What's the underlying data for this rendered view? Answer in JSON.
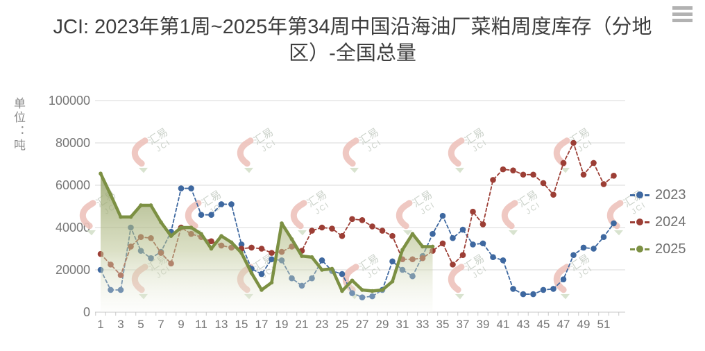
{
  "title": "JCI: 2023年第1周~2025年第34周中国沿海油厂菜粕周度库存（分地区）-全国总量",
  "menu_icon": "hamburger-icon",
  "y_axis": {
    "unit_label": "单位：吨",
    "tick_labels": [
      "0",
      "20000",
      "40000",
      "60000",
      "80000",
      "100000"
    ]
  },
  "x_axis": {
    "tick_labels": [
      "1",
      "3",
      "5",
      "7",
      "9",
      "11",
      "13",
      "15",
      "17",
      "19",
      "21",
      "23",
      "25",
      "27",
      "29",
      "31",
      "33",
      "35",
      "37",
      "39",
      "41",
      "43",
      "45",
      "47",
      "49",
      "51"
    ],
    "weeks_total": 52
  },
  "legend": [
    {
      "label": "2023",
      "color": "#3e68a0"
    },
    {
      "label": "2024",
      "color": "#9c3e35"
    },
    {
      "label": "2025",
      "color": "#7c9043"
    }
  ],
  "watermark": {
    "line1": "汇易",
    "line2": "JCI"
  },
  "colors": {
    "grid": "#d8d8d8",
    "axis": "#c8c8c8",
    "tick_text": "#767676",
    "area_top": "#8e9c5e",
    "area_mid": "#bcc594",
    "area_bottom": "#f7f8f2"
  },
  "chart_data": {
    "type": "line",
    "title": "JCI: 2023年第1周~2025年第34周中国沿海油厂菜粕周度库存（分地区）-全国总量",
    "ylabel": "单位：吨",
    "ylim": [
      0,
      100000
    ],
    "ytick_step": 20000,
    "x": [
      1,
      2,
      3,
      4,
      5,
      6,
      7,
      8,
      9,
      10,
      11,
      12,
      13,
      14,
      15,
      16,
      17,
      18,
      19,
      20,
      21,
      22,
      23,
      24,
      25,
      26,
      27,
      28,
      29,
      30,
      31,
      32,
      33,
      34,
      35,
      36,
      37,
      38,
      39,
      40,
      41,
      42,
      43,
      44,
      45,
      46,
      47,
      48,
      49,
      50,
      51,
      52
    ],
    "legend_position": "right",
    "grid": true,
    "series": [
      {
        "name": "2023",
        "color": "#3e68a0",
        "line_style": "dashed",
        "marker": "circle",
        "values": [
          20000,
          10500,
          10500,
          40000,
          29000,
          25500,
          28500,
          38000,
          58500,
          58500,
          46000,
          46000,
          51000,
          51000,
          32000,
          20500,
          18000,
          25000,
          24500,
          16000,
          12500,
          16000,
          24500,
          19500,
          18000,
          9000,
          7000,
          7500,
          10500,
          24000,
          20000,
          17000,
          26500,
          37000,
          45500,
          35000,
          39000,
          32000,
          32500,
          26000,
          24500,
          11000,
          8500,
          8500,
          10500,
          11000,
          15500,
          27000,
          30500,
          30000,
          35500,
          42000
        ]
      },
      {
        "name": "2024",
        "color": "#9c3e35",
        "line_style": "dashed",
        "marker": "circle",
        "values": [
          27500,
          22500,
          17500,
          31000,
          35500,
          35000,
          28000,
          23000,
          40000,
          37000,
          35500,
          33500,
          31500,
          30500,
          30000,
          30500,
          30000,
          28000,
          28500,
          31000,
          29000,
          38500,
          40000,
          39500,
          36000,
          44000,
          43500,
          40500,
          38500,
          36000,
          25000,
          25000,
          25500,
          29000,
          32500,
          22500,
          27000,
          47500,
          41500,
          62500,
          67500,
          67000,
          65000,
          65000,
          61000,
          55500,
          70500,
          80000,
          65000,
          70500,
          60500,
          64500
        ]
      },
      {
        "name": "2025",
        "color": "#7c9043",
        "line_style": "solid",
        "area": true,
        "marker": "circle",
        "values": [
          65500,
          55500,
          45000,
          45000,
          50500,
          50500,
          42500,
          36000,
          40000,
          40000,
          37000,
          30000,
          36000,
          33000,
          28000,
          18500,
          10500,
          14000,
          42000,
          34500,
          26500,
          26000,
          20000,
          20500,
          10000,
          15000,
          10500,
          10000,
          10500,
          14500,
          29500,
          37000,
          31000,
          31000
        ]
      }
    ]
  }
}
